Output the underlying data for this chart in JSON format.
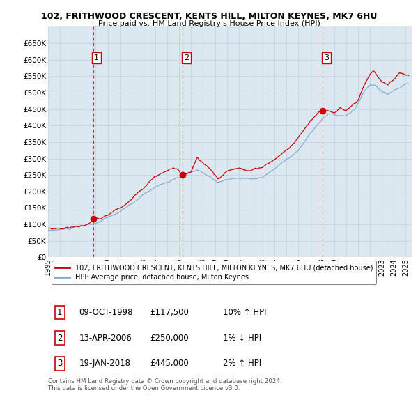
{
  "title1": "102, FRITHWOOD CRESCENT, KENTS HILL, MILTON KEYNES, MK7 6HU",
  "title2": "Price paid vs. HM Land Registry's House Price Index (HPI)",
  "xlim_start": 1995.0,
  "xlim_end": 2025.5,
  "ylim": [
    0,
    700000
  ],
  "yticks": [
    0,
    50000,
    100000,
    150000,
    200000,
    250000,
    300000,
    350000,
    400000,
    450000,
    500000,
    550000,
    600000,
    650000
  ],
  "grid_color": "#c8d8e8",
  "background_color": "#ffffff",
  "plot_bg_color": "#dce8f0",
  "red_line_color": "#cc0000",
  "blue_line_color": "#88aacc",
  "sale_dates": [
    1998.77,
    2006.28,
    2018.05
  ],
  "sale_prices": [
    117500,
    250000,
    445000
  ],
  "sale_labels": [
    "1",
    "2",
    "3"
  ],
  "vline_color": "#cc0000",
  "legend_label_red": "102, FRITHWOOD CRESCENT, KENTS HILL, MILTON KEYNES, MK7 6HU (detached house)",
  "legend_label_blue": "HPI: Average price, detached house, Milton Keynes",
  "table_data": [
    [
      "1",
      "09-OCT-1998",
      "£117,500",
      "10% ↑ HPI"
    ],
    [
      "2",
      "13-APR-2006",
      "£250,000",
      "1% ↓ HPI"
    ],
    [
      "3",
      "19-JAN-2018",
      "£445,000",
      "2% ↑ HPI"
    ]
  ],
  "footer": "Contains HM Land Registry data © Crown copyright and database right 2024.\nThis data is licensed under the Open Government Licence v3.0."
}
